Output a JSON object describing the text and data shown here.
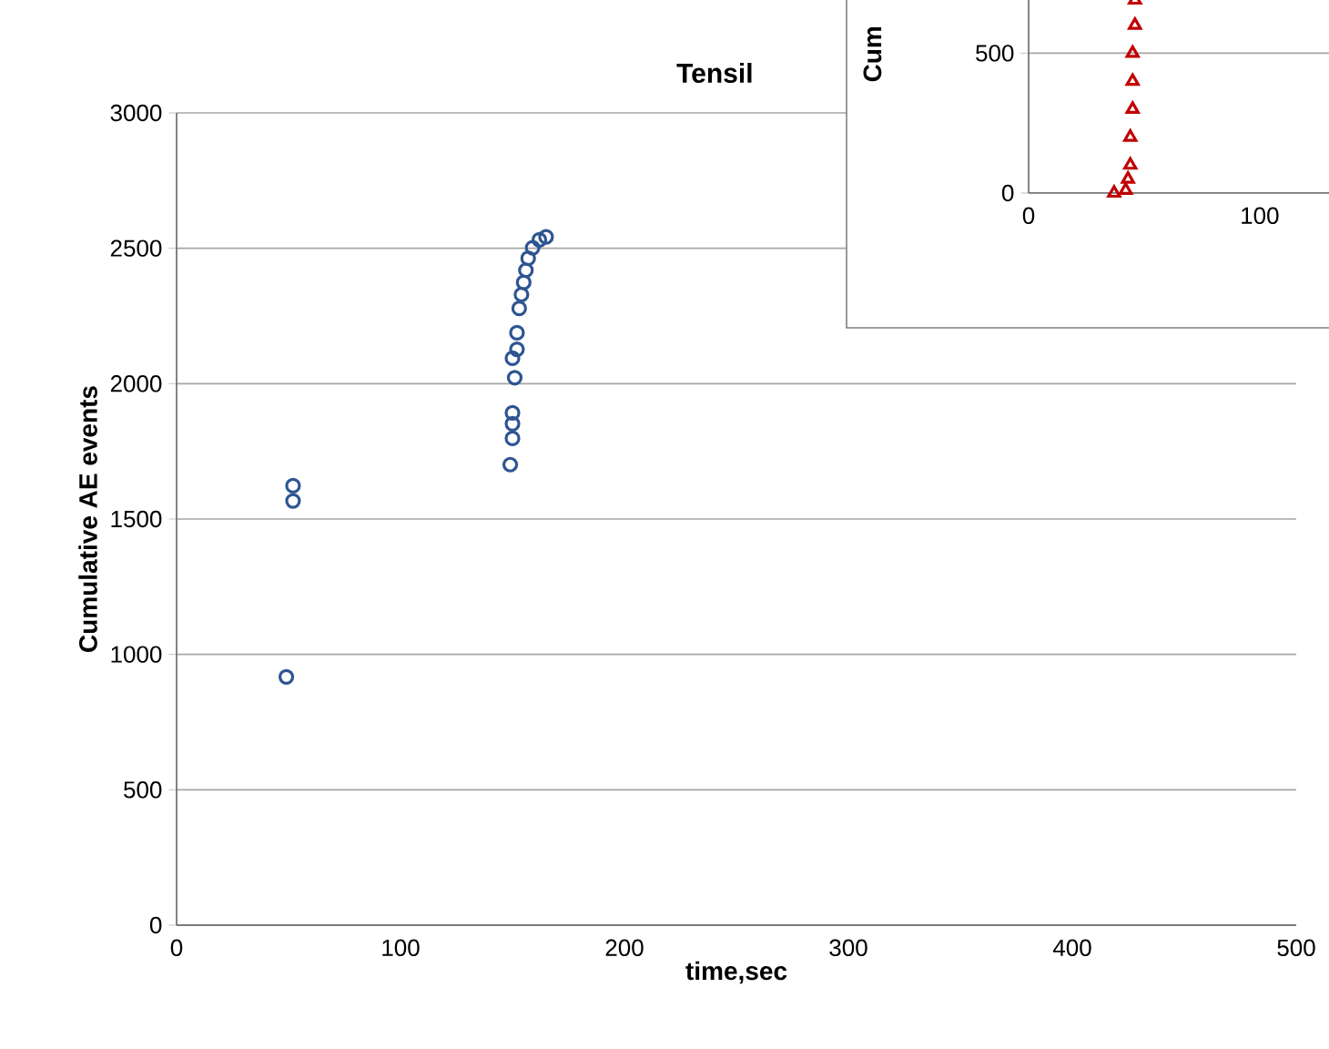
{
  "chart_data": [
    {
      "type": "scatter",
      "title": "Tensil",
      "xlabel": "time,sec",
      "ylabel": "Cumulative AE events",
      "marker": "circle",
      "grid": "y",
      "xlim": [
        0,
        500
      ],
      "xticks": [
        0,
        100,
        200,
        300,
        400,
        500
      ],
      "ylim": [
        0,
        3000
      ],
      "yticks": [
        0,
        500,
        1000,
        1500,
        2000,
        2500,
        3000
      ],
      "series": [
        {
          "color": "#2e5591",
          "x": [
            49,
            52,
            52,
            149,
            150,
            150,
            150,
            151,
            150,
            152,
            152,
            153,
            154,
            155,
            156,
            157,
            159,
            162,
            165
          ],
          "values": [
            917,
            1567,
            1623,
            1701,
            1798,
            1852,
            1892,
            2022,
            2094,
            2127,
            2188,
            2278,
            2329,
            2374,
            2419,
            2463,
            2502,
            2531,
            2542
          ]
        }
      ]
    },
    {
      "type": "scatter",
      "ylabel": "Cum",
      "marker": "triangle",
      "grid": "y",
      "xlim": [
        0,
        130
      ],
      "xticks": [
        0,
        100
      ],
      "ylim": [
        0,
        690
      ],
      "yticks": [
        0,
        500
      ],
      "series": [
        {
          "color": "#c00000",
          "x": [
            37,
            42,
            43,
            44,
            44,
            45,
            45,
            45,
            46,
            46
          ],
          "values": [
            0,
            10,
            50,
            100,
            200,
            300,
            400,
            500,
            600,
            690
          ]
        }
      ]
    }
  ]
}
